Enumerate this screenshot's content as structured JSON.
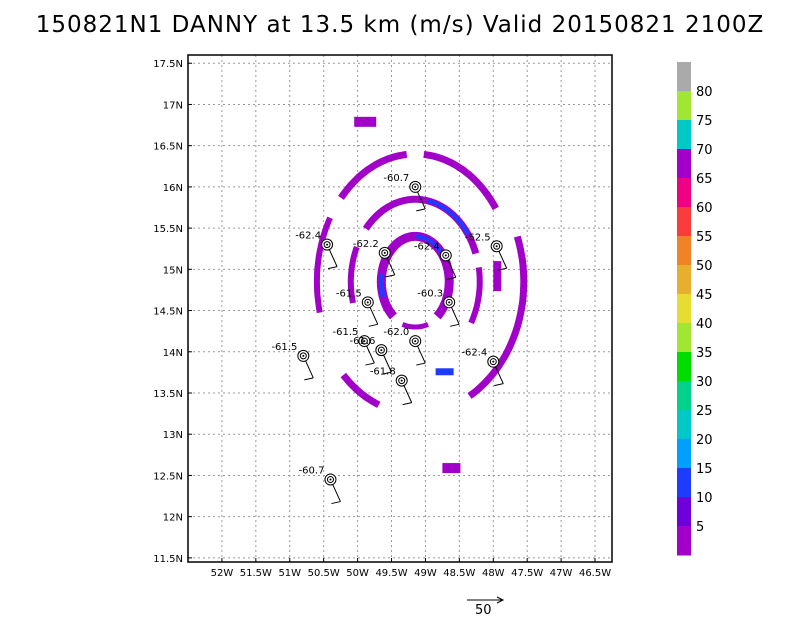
{
  "title": "150821N1 DANNY at 13.5 km (m/s) Valid 20150821 2100Z",
  "chart_data": {
    "type": "scatter",
    "title": "150821N1 DANNY at 13.5 km (m/s) Valid 20150821 2100Z",
    "xlim": [
      -52.5,
      -46.25
    ],
    "ylim": [
      11.45,
      17.6
    ],
    "x_ticks": [
      {
        "v": -52,
        "t": "52W"
      },
      {
        "v": -51.5,
        "t": "51.5W"
      },
      {
        "v": -51,
        "t": "51W"
      },
      {
        "v": -50.5,
        "t": "50.5W"
      },
      {
        "v": -50,
        "t": "50W"
      },
      {
        "v": -49.5,
        "t": "49.5W"
      },
      {
        "v": -49,
        "t": "49W"
      },
      {
        "v": -48.5,
        "t": "48.5W"
      },
      {
        "v": -48,
        "t": "48W"
      },
      {
        "v": -47.5,
        "t": "47.5W"
      },
      {
        "v": -47,
        "t": "47W"
      },
      {
        "v": -46.5,
        "t": "46.5W"
      }
    ],
    "y_ticks": [
      {
        "v": 11.5,
        "t": "11.5N"
      },
      {
        "v": 12,
        "t": "12N"
      },
      {
        "v": 12.5,
        "t": "12.5N"
      },
      {
        "v": 13,
        "t": "13N"
      },
      {
        "v": 13.5,
        "t": "13.5N"
      },
      {
        "v": 14,
        "t": "14N"
      },
      {
        "v": 14.5,
        "t": "14.5N"
      },
      {
        "v": 15,
        "t": "15N"
      },
      {
        "v": 15.5,
        "t": "15.5N"
      },
      {
        "v": 16,
        "t": "16N"
      },
      {
        "v": 16.5,
        "t": "16.5N"
      },
      {
        "v": 17,
        "t": "17N"
      },
      {
        "v": 17.5,
        "t": "17.5N"
      }
    ],
    "grid": true,
    "sondes": [
      {
        "lon": -49.15,
        "lat": 16.0,
        "label": "-60.7"
      },
      {
        "lon": -50.45,
        "lat": 15.3,
        "label": "-62.4"
      },
      {
        "lon": -49.6,
        "lat": 15.2,
        "label": "-62.2"
      },
      {
        "lon": -48.7,
        "lat": 15.17,
        "label": "-62.4"
      },
      {
        "lon": -47.95,
        "lat": 15.28,
        "label": "-62.5"
      },
      {
        "lon": -49.85,
        "lat": 14.6,
        "label": "-61.5"
      },
      {
        "lon": -48.65,
        "lat": 14.6,
        "label": "-60.3"
      },
      {
        "lon": -49.15,
        "lat": 14.13,
        "label": "-62.0"
      },
      {
        "lon": -49.9,
        "lat": 14.13,
        "label": "-61.5"
      },
      {
        "lon": -49.65,
        "lat": 14.02,
        "label": "-61.6"
      },
      {
        "lon": -50.8,
        "lat": 13.95,
        "label": "-61.5"
      },
      {
        "lon": -48.0,
        "lat": 13.88,
        "label": "-62.4"
      },
      {
        "lon": -49.35,
        "lat": 13.65,
        "label": "-61.8"
      },
      {
        "lon": -50.4,
        "lat": 12.45,
        "label": "-60.7"
      }
    ],
    "colorbar": {
      "labels": [
        "5",
        "10",
        "15",
        "20",
        "25",
        "30",
        "35",
        "40",
        "45",
        "50",
        "55",
        "60",
        "65",
        "70",
        "75",
        "80"
      ],
      "colors": [
        "#a000c8",
        "#6e00dc",
        "#1e3cff",
        "#00a0ff",
        "#00c8c8",
        "#00d28c",
        "#00dc00",
        "#a0e632",
        "#e6dc32",
        "#e6af2d",
        "#f08228",
        "#fa3c3c",
        "#f00082",
        "#a000c8",
        "#00c8c8",
        "#a0e632",
        "#aaaaaa"
      ]
    },
    "reference_vector": {
      "label": "50"
    }
  }
}
